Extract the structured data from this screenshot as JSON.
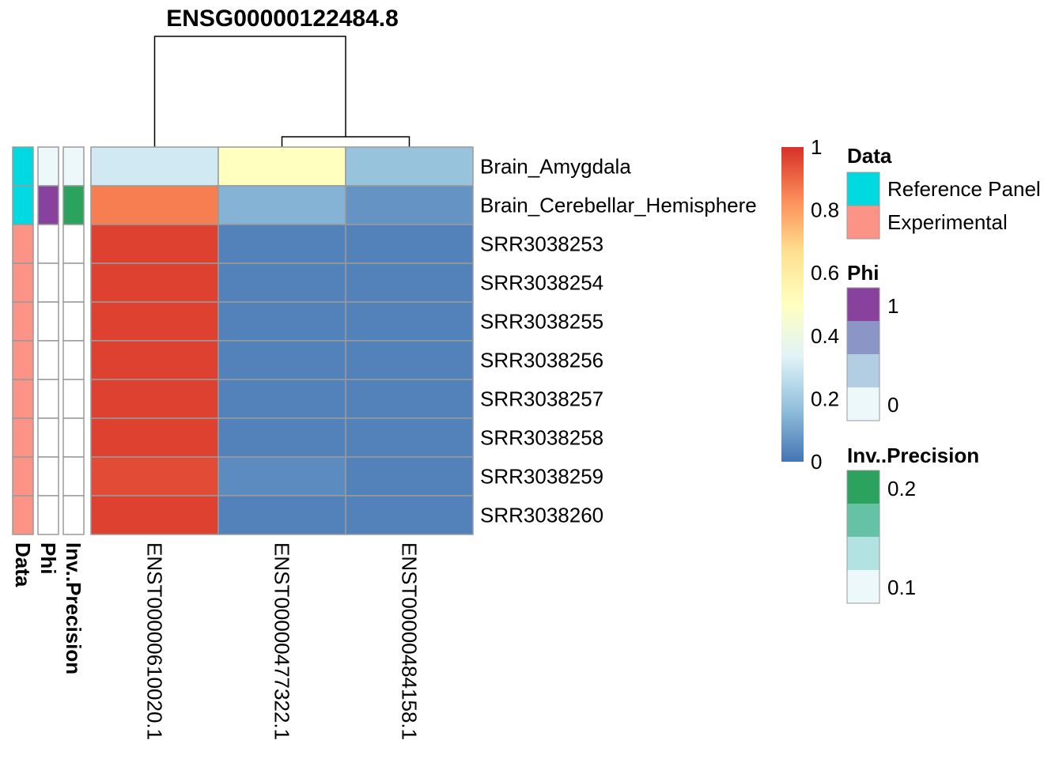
{
  "chart_data": {
    "type": "heatmap",
    "title": "ENSG00000122484.8",
    "columns": [
      "ENST00000610020.1",
      "ENST00000477322.1",
      "ENST00000484158.1"
    ],
    "rows": [
      "Brain_Amygdala",
      "Brain_Cerebellar_Hemisphere",
      "SRR3038253",
      "SRR3038254",
      "SRR3038255",
      "SRR3038256",
      "SRR3038257",
      "SRR3038258",
      "SRR3038259",
      "SRR3038260"
    ],
    "values": [
      [
        0.3,
        0.5,
        0.18
      ],
      [
        0.86,
        0.14,
        0.07
      ],
      [
        0.97,
        0.03,
        0.03
      ],
      [
        0.97,
        0.03,
        0.03
      ],
      [
        0.97,
        0.03,
        0.03
      ],
      [
        0.97,
        0.03,
        0.03
      ],
      [
        0.97,
        0.03,
        0.03
      ],
      [
        0.97,
        0.03,
        0.03
      ],
      [
        0.95,
        0.05,
        0.03
      ],
      [
        0.97,
        0.03,
        0.03
      ]
    ],
    "color_scale": {
      "range": [
        0,
        1
      ],
      "ticks": [
        "0",
        "0.2",
        "0.4",
        "0.6",
        "0.8",
        "1"
      ],
      "stops": [
        "#4575b4",
        "#91bfdb",
        "#e0f3f8",
        "#ffffbf",
        "#fee090",
        "#fc8d59",
        "#d73027"
      ]
    },
    "column_dendrogram": "((ENST00000477322.1, ENST00000484158.1), ENST00000610020.1)",
    "annotations": [
      {
        "name": "Data",
        "values": [
          "Reference Panel",
          "Reference Panel",
          "Experimental",
          "Experimental",
          "Experimental",
          "Experimental",
          "Experimental",
          "Experimental",
          "Experimental",
          "Experimental"
        ],
        "legend": [
          {
            "label": "Reference Panel",
            "color": "#00d9e0"
          },
          {
            "label": "Experimental",
            "color": "#fb9387"
          }
        ]
      },
      {
        "name": "Phi",
        "values": [
          0,
          1,
          null,
          null,
          null,
          null,
          null,
          null,
          null,
          null
        ],
        "colors": [
          "#edf8fb",
          "#b3cde3",
          "#8c96c6",
          "#88419d"
        ],
        "legend_ticks": [
          "1",
          "0"
        ]
      },
      {
        "name": "Inv..Precision",
        "values": [
          0.1,
          0.2,
          null,
          null,
          null,
          null,
          null,
          null,
          null,
          null
        ],
        "colors": [
          "#edf8fb",
          "#b2e2e2",
          "#66c2a4",
          "#2ca25f"
        ],
        "legend_ticks": [
          "0.2",
          "0.1"
        ]
      }
    ]
  }
}
